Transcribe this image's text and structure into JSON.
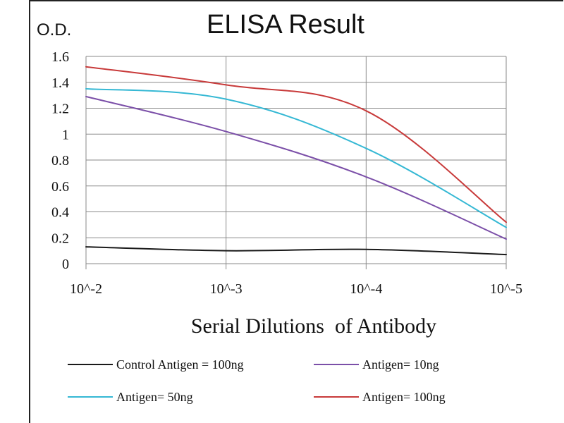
{
  "chart_data": {
    "type": "line",
    "title": "ELISA Result",
    "ylabel": "O.D.",
    "xlabel": "Serial Dilutions  of Antibody",
    "categories": [
      "10^-2",
      "10^-3",
      "10^-4",
      "10^-5"
    ],
    "ylim": [
      0,
      1.6
    ],
    "yticks": [
      "0",
      "0.2",
      "0.4",
      "0.6",
      "0.8",
      "1",
      "1.2",
      "1.4",
      "1.6"
    ],
    "grid": true,
    "legend_placement": "bottom",
    "series": [
      {
        "name": "Control Antigen = 100ng",
        "color": "#1a1a1a",
        "values": [
          0.13,
          0.1,
          0.11,
          0.07
        ]
      },
      {
        "name": "Antigen= 10ng",
        "color": "#7b4fa8",
        "values": [
          1.29,
          1.02,
          0.67,
          0.19
        ]
      },
      {
        "name": "Antigen= 50ng",
        "color": "#35b8d4",
        "values": [
          1.35,
          1.27,
          0.89,
          0.28
        ]
      },
      {
        "name": "Antigen= 100ng",
        "color": "#c83a3a",
        "values": [
          1.52,
          1.38,
          1.18,
          0.32
        ]
      }
    ]
  }
}
